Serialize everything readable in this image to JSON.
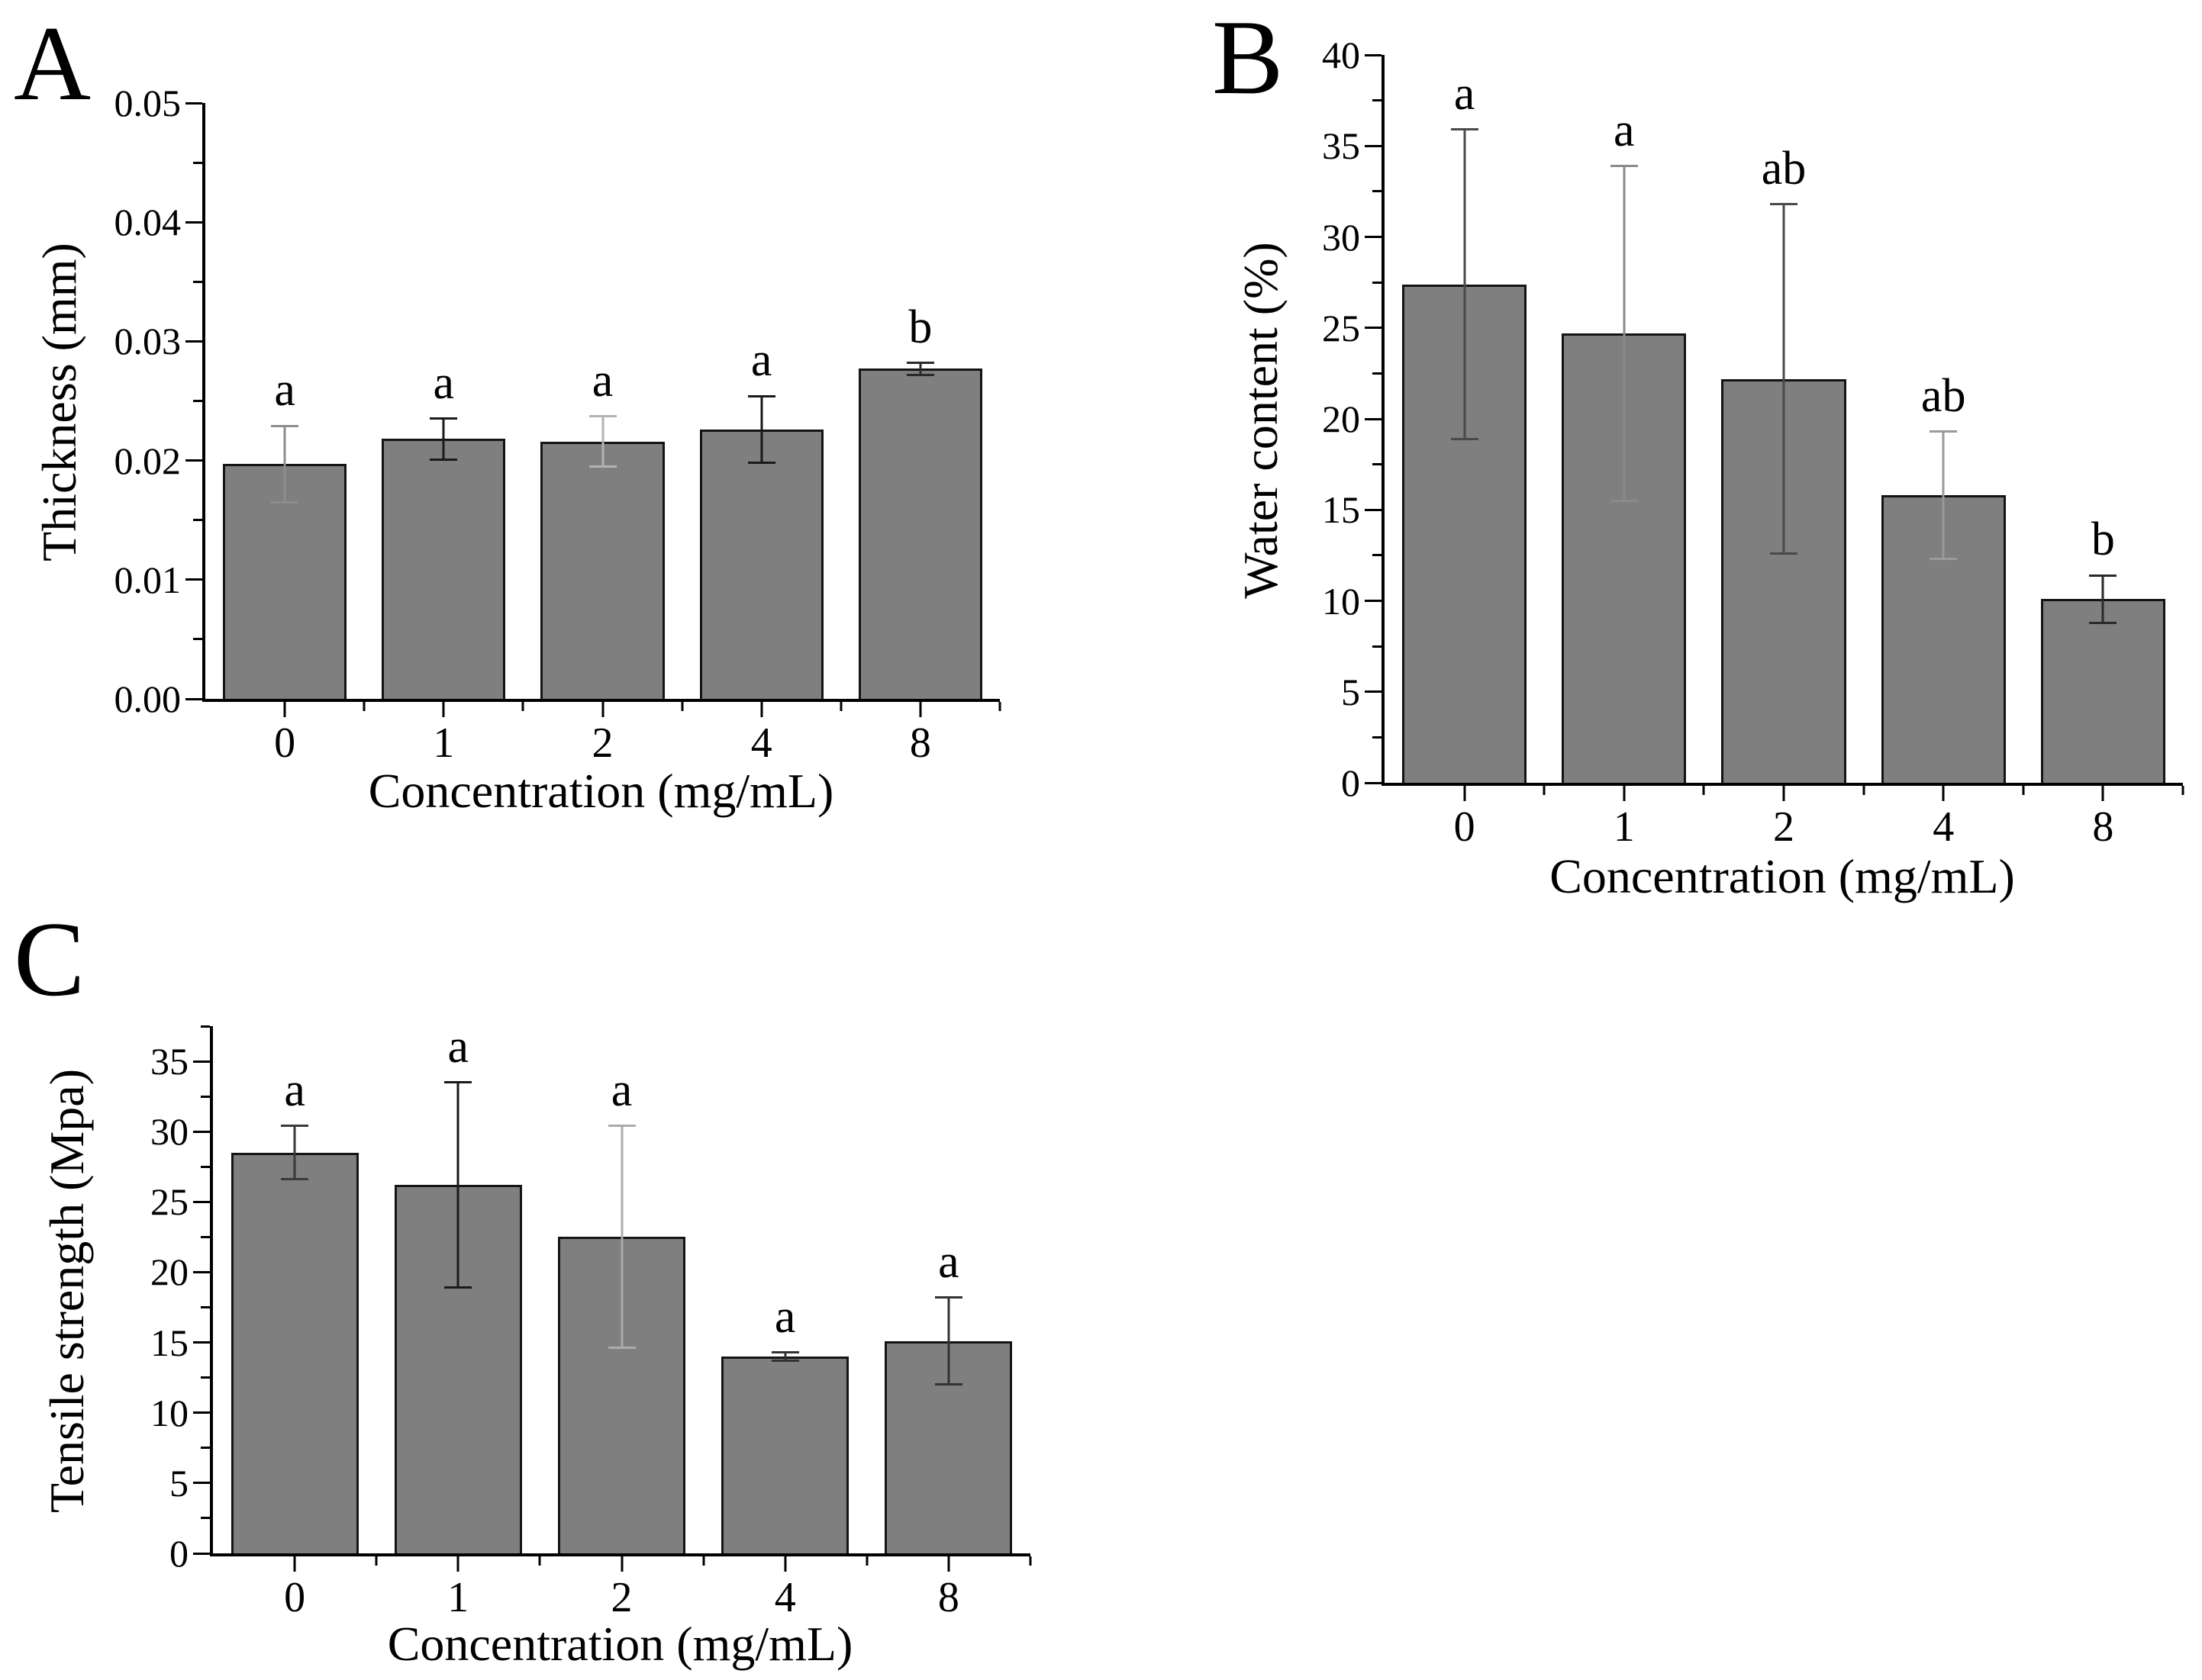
{
  "chart_data": [
    {
      "panel": "A",
      "type": "bar",
      "title": "",
      "categories": [
        "0",
        "1",
        "2",
        "4",
        "8"
      ],
      "values": [
        0.0197,
        0.0218,
        0.0216,
        0.0226,
        0.0277
      ],
      "errors": [
        0.0032,
        0.0017,
        0.0021,
        0.0028,
        0.0005
      ],
      "sig_letters": [
        "a",
        "a",
        "a",
        "a",
        "b"
      ],
      "xlabel": "Concentration (mg/mL)",
      "ylabel": "Thickness (mm)",
      "ylim": [
        0,
        0.05
      ],
      "ytick_step": 0.01,
      "ytick_decimals": 2,
      "grid": false,
      "legend": "none",
      "bar_color": "#7f7f7f",
      "bar_border_color": "#141414",
      "error_colors": [
        "#8d8d8d",
        "#1a1a1a",
        "#b3b3b3",
        "#1a1a1a",
        "#2a2a2a"
      ]
    },
    {
      "panel": "B",
      "type": "bar",
      "title": "",
      "categories": [
        "0",
        "1",
        "2",
        "4",
        "8"
      ],
      "values": [
        27.4,
        24.7,
        22.2,
        15.8,
        10.1
      ],
      "errors": [
        8.5,
        9.2,
        9.6,
        3.5,
        1.3
      ],
      "sig_letters": [
        "a",
        "a",
        "ab",
        "ab",
        "b"
      ],
      "xlabel": "Concentration (mg/mL)",
      "ylabel": "Water content (%)",
      "ylim": [
        0,
        40
      ],
      "ytick_step": 5,
      "ytick_decimals": 0,
      "grid": false,
      "legend": "none",
      "bar_color": "#7f7f7f",
      "bar_border_color": "#141414",
      "error_colors": [
        "#4a4a4a",
        "#8a8a8a",
        "#4a4a4a",
        "#9a9a9a",
        "#2a2a2a"
      ]
    },
    {
      "panel": "C",
      "type": "bar",
      "title": "",
      "categories": [
        "0",
        "1",
        "2",
        "4",
        "8"
      ],
      "values": [
        28.5,
        26.2,
        22.5,
        14.0,
        15.1
      ],
      "errors": [
        1.9,
        7.3,
        7.9,
        0.3,
        3.1
      ],
      "sig_letters": [
        "a",
        "a",
        "a",
        "a",
        "a"
      ],
      "xlabel": "Concentration (mg/mL)",
      "ylabel": "Tensile strength (Mpa)",
      "ylim": [
        0,
        37.5
      ],
      "ytick_step": 5,
      "ytick_decimals": 0,
      "grid": false,
      "legend": "none",
      "bar_color": "#7f7f7f",
      "bar_border_color": "#141414",
      "error_colors": [
        "#3a3a3a",
        "#1a1a1a",
        "#ababab",
        "#333333",
        "#333333"
      ]
    }
  ]
}
